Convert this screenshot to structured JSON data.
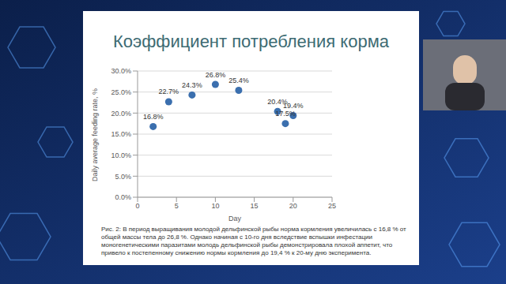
{
  "chart_data": {
    "type": "scatter",
    "title": "Коэффициент потребления корма",
    "x_label": "Day",
    "y_label": "Daily average feeding rate, %",
    "x": [
      2,
      4,
      7,
      10,
      13,
      18,
      19,
      20
    ],
    "values": [
      16.8,
      22.7,
      24.3,
      26.8,
      25.4,
      20.4,
      17.5,
      19.4
    ],
    "value_labels": [
      "16.8%",
      "22.7%",
      "24.3%",
      "26.8%",
      "25.4%",
      "20.4%",
      "17.5%",
      "19.4%"
    ],
    "color": "#3b6fae",
    "marker": "circle",
    "xlim": [
      0,
      25
    ],
    "xticks": [
      0,
      5,
      10,
      15,
      20,
      25
    ],
    "ylim": [
      0,
      30
    ],
    "yticks": [
      {
        "value": 0,
        "label": "0.0%"
      },
      {
        "value": 5,
        "label": "5.0%"
      },
      {
        "value": 10,
        "label": "10.0%"
      },
      {
        "value": 15,
        "label": "15.0%"
      },
      {
        "value": 20,
        "label": "20.0%"
      },
      {
        "value": 25,
        "label": "25.0%"
      },
      {
        "value": 30,
        "label": "30.0%"
      }
    ],
    "grid": true,
    "data_labels": true,
    "caption": "Рис. 2: В период выращивания молодой дельфинской рыбы норма кормления увеличилась с 16,8 % от общей массы тела до 26,8 %. Однако начиная с 10-го дня вследствие вспышки инфестации моногенетическими паразитами молодь дельфинской рыбы демонстрировала плохой аппетит, что привело к постепенному снижению нормы кормления до 19,4 % к 20-му дню эксперимента."
  }
}
